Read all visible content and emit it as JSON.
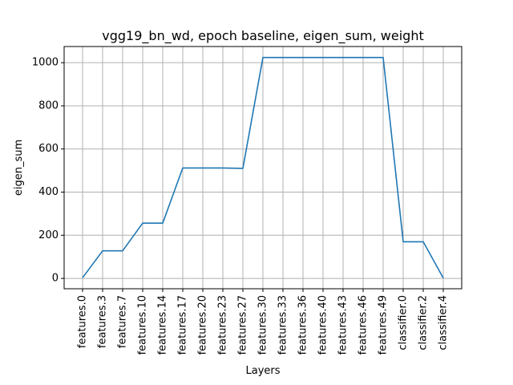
{
  "chart_data": {
    "type": "line",
    "title": "vgg19_bn_wd, epoch baseline, eigen_sum, weight",
    "xlabel": "Layers",
    "ylabel": "eigen_sum",
    "categories": [
      "features.0",
      "features.3",
      "features.7",
      "features.10",
      "features.14",
      "features.17",
      "features.20",
      "features.23",
      "features.27",
      "features.30",
      "features.33",
      "features.36",
      "features.40",
      "features.43",
      "features.46",
      "features.49",
      "classifier.0",
      "classifier.2",
      "classifier.4"
    ],
    "series": [
      {
        "values": [
          3,
          128,
          128,
          256,
          256,
          512,
          512,
          512,
          510,
          1024,
          1024,
          1024,
          1024,
          1024,
          1024,
          1024,
          170,
          170,
          2
        ],
        "color": "#1f77b4"
      }
    ],
    "yticks": [
      0,
      200,
      400,
      600,
      800,
      1000
    ],
    "ylim": [
      -48,
      1075
    ],
    "grid": true
  }
}
